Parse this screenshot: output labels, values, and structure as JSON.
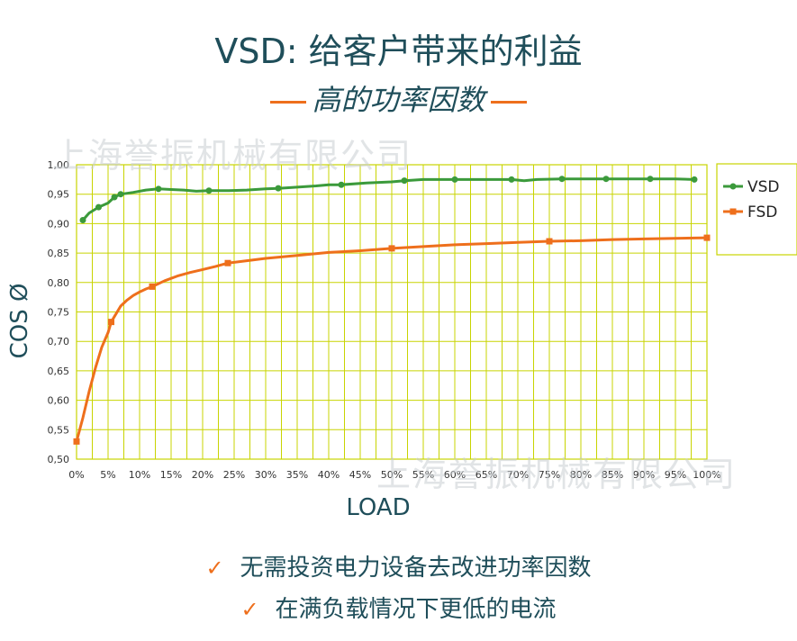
{
  "title": "VSD: 给客户带来的利益",
  "subtitle": "高的功率因数",
  "watermark": "上海誉振机械有限公司",
  "bullets": [
    "无需投资电力设备去改进功率因数",
    "在满负载情况下更低的电流"
  ],
  "colors": {
    "grid": "#c8d400",
    "vsd": "#3b9a3b",
    "fsd": "#ee6f1c",
    "text": "#1f4e5a"
  },
  "chart_data": {
    "type": "line",
    "xlabel": "LOAD",
    "ylabel": "COS Ø",
    "xlim": [
      0,
      100
    ],
    "ylim": [
      0.5,
      1.0
    ],
    "x_tick_labels": [
      "0%",
      "5%",
      "10%",
      "15%",
      "20%",
      "25%",
      "30%",
      "35%",
      "40%",
      "45%",
      "50%",
      "55%",
      "60%",
      "65%",
      "70%",
      "75%",
      "80%",
      "85%",
      "90%",
      "95%",
      "100%"
    ],
    "y_tick_labels": [
      "0,50",
      "0,55",
      "0,60",
      "0,65",
      "0,70",
      "0,75",
      "0,80",
      "0,85",
      "0,90",
      "0,95",
      "1,00"
    ],
    "grid": true,
    "legend_position": "top-right",
    "series": [
      {
        "name": "VSD",
        "marker": "circle",
        "x": [
          1,
          3.5,
          6,
          7,
          13,
          21,
          32,
          42,
          52,
          60,
          69,
          77,
          84,
          91,
          98
        ],
        "y": [
          0.906,
          0.928,
          0.945,
          0.95,
          0.959,
          0.956,
          0.96,
          0.966,
          0.973,
          0.975,
          0.975,
          0.976,
          0.976,
          0.976,
          0.975
        ],
        "curve_x": [
          1,
          2,
          3.5,
          5,
          6,
          7,
          9,
          11,
          13,
          15,
          17,
          19,
          21,
          24,
          27,
          30,
          32,
          35,
          38,
          40,
          42,
          46,
          50,
          52,
          55,
          60,
          65,
          69,
          71,
          73,
          77,
          80,
          84,
          88,
          91,
          95,
          98
        ],
        "curve_y": [
          0.906,
          0.918,
          0.928,
          0.935,
          0.945,
          0.95,
          0.953,
          0.957,
          0.959,
          0.958,
          0.957,
          0.955,
          0.956,
          0.956,
          0.957,
          0.959,
          0.96,
          0.962,
          0.964,
          0.966,
          0.966,
          0.969,
          0.971,
          0.973,
          0.975,
          0.975,
          0.975,
          0.975,
          0.973,
          0.975,
          0.976,
          0.976,
          0.976,
          0.976,
          0.976,
          0.976,
          0.975
        ]
      },
      {
        "name": "FSD",
        "marker": "square",
        "x": [
          0,
          5.5,
          12,
          24,
          50,
          75,
          100
        ],
        "y": [
          0.53,
          0.733,
          0.793,
          0.833,
          0.858,
          0.87,
          0.876
        ],
        "curve_x": [
          0,
          1,
          2,
          3,
          4,
          5,
          5.5,
          6,
          7,
          8,
          9,
          10,
          11,
          12,
          14,
          16,
          18,
          20,
          22,
          24,
          27,
          30,
          35,
          40,
          45,
          50,
          55,
          60,
          65,
          70,
          75,
          80,
          85,
          90,
          95,
          100
        ],
        "curve_y": [
          0.53,
          0.57,
          0.615,
          0.655,
          0.69,
          0.715,
          0.733,
          0.742,
          0.76,
          0.77,
          0.778,
          0.784,
          0.789,
          0.793,
          0.803,
          0.811,
          0.817,
          0.822,
          0.827,
          0.833,
          0.837,
          0.841,
          0.846,
          0.851,
          0.854,
          0.858,
          0.861,
          0.864,
          0.866,
          0.868,
          0.87,
          0.871,
          0.873,
          0.874,
          0.875,
          0.876
        ]
      }
    ]
  }
}
